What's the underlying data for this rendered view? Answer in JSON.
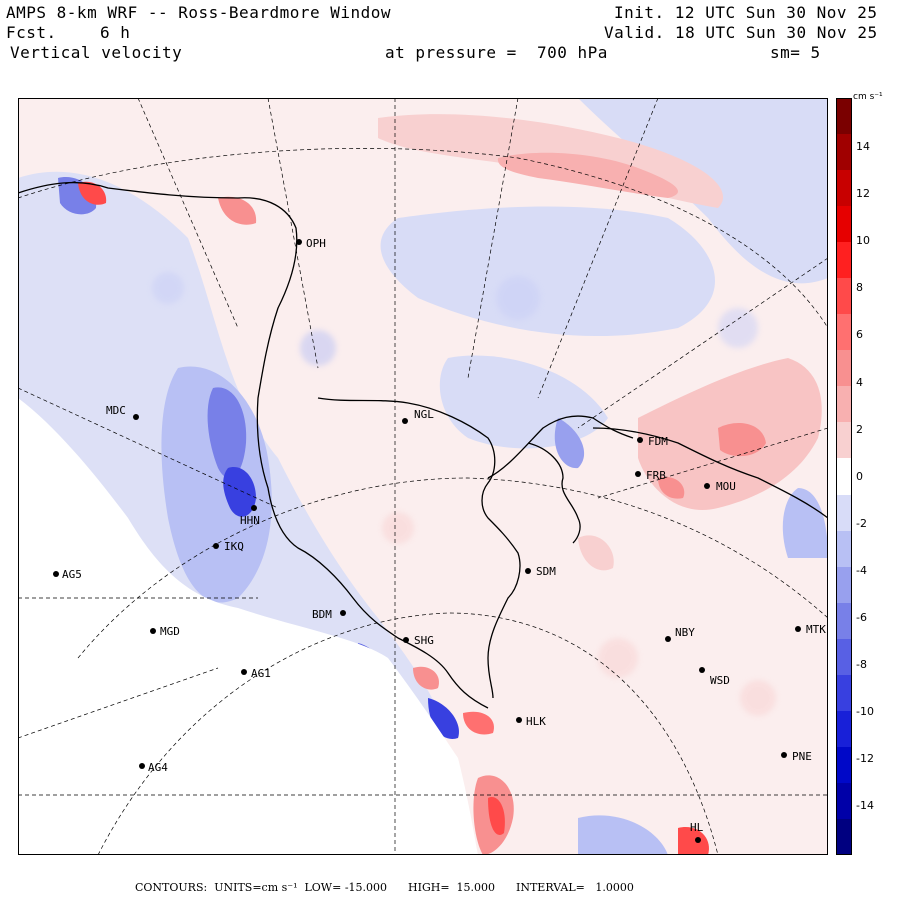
{
  "header": {
    "title": "AMPS 8-km WRF -- Ross-Beardmore Window",
    "forecast_label": "Fcst.",
    "forecast_value": "6 h",
    "field": "Vertical velocity",
    "pressure_label": "at pressure =  700 hPa",
    "init": "Init. 12 UTC Sun 30 Nov 25",
    "valid": "Valid. 18 UTC Sun 30 Nov 25",
    "smoothing": "sm= 5"
  },
  "colorbar": {
    "unit_label": "cm s⁻¹",
    "ticks": [
      "14",
      "12",
      "10",
      "8",
      "6",
      "4",
      "2",
      "0",
      "-2",
      "-4",
      "-6",
      "-8",
      "-10",
      "-12",
      "-14"
    ],
    "colors": [
      "#7a0000",
      "#a00000",
      "#c80000",
      "#e60000",
      "#ff2020",
      "#ff4a4a",
      "#ff7070",
      "#f89090",
      "#f8b0b0",
      "#f8d0d0",
      "#ffffff",
      "#d8dcf8",
      "#b8c0f4",
      "#98a0ee",
      "#7880e8",
      "#5860e4",
      "#3840e0",
      "#1820d8",
      "#0008c8",
      "#0000a8",
      "#000080"
    ]
  },
  "stations": [
    {
      "code": "OPH"
    },
    {
      "code": "MDC"
    },
    {
      "code": "NGL"
    },
    {
      "code": "FDM"
    },
    {
      "code": "FRB"
    },
    {
      "code": "MOU"
    },
    {
      "code": "HHN"
    },
    {
      "code": "IKQ"
    },
    {
      "code": "AG5"
    },
    {
      "code": "SDM"
    },
    {
      "code": "BDM"
    },
    {
      "code": "MGD"
    },
    {
      "code": "SHG"
    },
    {
      "code": "NBY"
    },
    {
      "code": "MTK"
    },
    {
      "code": "AG1"
    },
    {
      "code": "WSD"
    },
    {
      "code": "HLK"
    },
    {
      "code": "PNE"
    },
    {
      "code": "AG4"
    },
    {
      "code": "HL"
    }
  ],
  "footer": {
    "text": "CONTOURS:  UNITS=cm s⁻¹  LOW= -15.000      HIGH=  15.000      INTERVAL=   1.0000"
  }
}
